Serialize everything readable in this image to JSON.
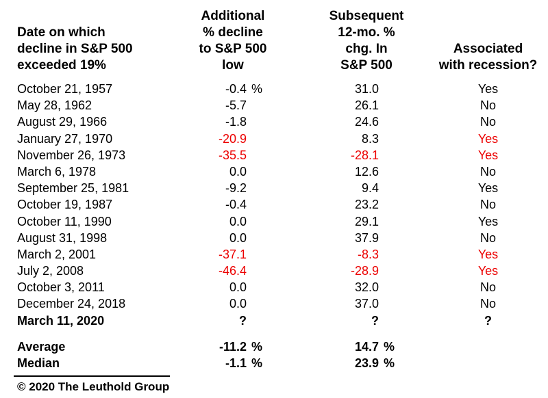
{
  "table": {
    "header": {
      "date_lines": [
        "Date on which",
        "decline in S&P 500",
        "exceeded 19%"
      ],
      "additional_lines": [
        "Additional",
        "% decline",
        "to S&P 500",
        "low"
      ],
      "subsequent_lines": [
        "Subsequent",
        "12-mo. %",
        "chg. In",
        "S&P 500"
      ],
      "recession_lines": [
        "Associated",
        "with recession?"
      ]
    },
    "rows": [
      {
        "date": "October 21, 1957",
        "add": "-0.4",
        "add_pct": "%",
        "chg": "31.0",
        "chg_pct": "",
        "recession": "Yes",
        "add_red": false,
        "chg_red": false,
        "rec_red": false,
        "bold": false
      },
      {
        "date": "May 28, 1962",
        "add": "-5.7",
        "add_pct": "",
        "chg": "26.1",
        "chg_pct": "",
        "recession": "No",
        "add_red": false,
        "chg_red": false,
        "rec_red": false,
        "bold": false
      },
      {
        "date": "August 29, 1966",
        "add": "-1.8",
        "add_pct": "",
        "chg": "24.6",
        "chg_pct": "",
        "recession": "No",
        "add_red": false,
        "chg_red": false,
        "rec_red": false,
        "bold": false
      },
      {
        "date": "January 27, 1970",
        "add": "-20.9",
        "add_pct": "",
        "chg": "8.3",
        "chg_pct": "",
        "recession": "Yes",
        "add_red": true,
        "chg_red": false,
        "rec_red": true,
        "bold": false
      },
      {
        "date": "November 26, 1973",
        "add": "-35.5",
        "add_pct": "",
        "chg": "-28.1",
        "chg_pct": "",
        "recession": "Yes",
        "add_red": true,
        "chg_red": true,
        "rec_red": true,
        "bold": false
      },
      {
        "date": "March 6, 1978",
        "add": "0.0",
        "add_pct": "",
        "chg": "12.6",
        "chg_pct": "",
        "recession": "No",
        "add_red": false,
        "chg_red": false,
        "rec_red": false,
        "bold": false
      },
      {
        "date": "September 25, 1981",
        "add": "-9.2",
        "add_pct": "",
        "chg": "9.4",
        "chg_pct": "",
        "recession": "Yes",
        "add_red": false,
        "chg_red": false,
        "rec_red": false,
        "bold": false
      },
      {
        "date": "October 19, 1987",
        "add": "-0.4",
        "add_pct": "",
        "chg": "23.2",
        "chg_pct": "",
        "recession": "No",
        "add_red": false,
        "chg_red": false,
        "rec_red": false,
        "bold": false
      },
      {
        "date": "October 11, 1990",
        "add": "0.0",
        "add_pct": "",
        "chg": "29.1",
        "chg_pct": "",
        "recession": "Yes",
        "add_red": false,
        "chg_red": false,
        "rec_red": false,
        "bold": false
      },
      {
        "date": "August 31, 1998",
        "add": "0.0",
        "add_pct": "",
        "chg": "37.9",
        "chg_pct": "",
        "recession": "No",
        "add_red": false,
        "chg_red": false,
        "rec_red": false,
        "bold": false
      },
      {
        "date": "March 2, 2001",
        "add": "-37.1",
        "add_pct": "",
        "chg": "-8.3",
        "chg_pct": "",
        "recession": "Yes",
        "add_red": true,
        "chg_red": true,
        "rec_red": true,
        "bold": false
      },
      {
        "date": "July 2, 2008",
        "add": "-46.4",
        "add_pct": "",
        "chg": "-28.9",
        "chg_pct": "",
        "recession": "Yes",
        "add_red": true,
        "chg_red": true,
        "rec_red": true,
        "bold": false
      },
      {
        "date": "October 3, 2011",
        "add": "0.0",
        "add_pct": "",
        "chg": "32.0",
        "chg_pct": "",
        "recession": "No",
        "add_red": false,
        "chg_red": false,
        "rec_red": false,
        "bold": false
      },
      {
        "date": "December 24, 2018",
        "add": "0.0",
        "add_pct": "",
        "chg": "37.0",
        "chg_pct": "",
        "recession": "No",
        "add_red": false,
        "chg_red": false,
        "rec_red": false,
        "bold": false
      },
      {
        "date": "March 11, 2020",
        "add": "?",
        "add_pct": "",
        "chg": "?",
        "chg_pct": "",
        "recession": "?",
        "add_red": false,
        "chg_red": false,
        "rec_red": false,
        "bold": true
      }
    ],
    "summary_rows": [
      {
        "date": "Average",
        "add": "-11.2",
        "add_pct": "%",
        "chg": "14.7",
        "chg_pct": "%",
        "recession": "",
        "add_red": false,
        "chg_red": false,
        "rec_red": false,
        "bold": true
      },
      {
        "date": "Median",
        "add": "-1.1",
        "add_pct": "%",
        "chg": "23.9",
        "chg_pct": "%",
        "recession": "",
        "add_red": false,
        "chg_red": false,
        "rec_red": false,
        "bold": true
      }
    ]
  },
  "footer": {
    "copyright": "© 2020 The Leuthold Group"
  },
  "colors": {
    "background": "#ffffff",
    "text": "#000000",
    "highlight_red": "#ec0000"
  },
  "chart_data": {
    "type": "table",
    "columns": [
      "Date on which decline in S&P 500 exceeded 19%",
      "Additional % decline to S&P 500 low",
      "Subsequent 12-mo. % chg. In S&P 500",
      "Associated with recession?"
    ],
    "rows": [
      [
        "October 21, 1957",
        -0.4,
        31.0,
        "Yes"
      ],
      [
        "May 28, 1962",
        -5.7,
        26.1,
        "No"
      ],
      [
        "August 29, 1966",
        -1.8,
        24.6,
        "No"
      ],
      [
        "January 27, 1970",
        -20.9,
        8.3,
        "Yes"
      ],
      [
        "November 26, 1973",
        -35.5,
        -28.1,
        "Yes"
      ],
      [
        "March 6, 1978",
        0.0,
        12.6,
        "No"
      ],
      [
        "September 25, 1981",
        -9.2,
        9.4,
        "Yes"
      ],
      [
        "October 19, 1987",
        -0.4,
        23.2,
        "No"
      ],
      [
        "October 11, 1990",
        0.0,
        29.1,
        "Yes"
      ],
      [
        "August 31, 1998",
        0.0,
        37.9,
        "No"
      ],
      [
        "March 2, 2001",
        -37.1,
        -8.3,
        "Yes"
      ],
      [
        "July 2, 2008",
        -46.4,
        -28.9,
        "Yes"
      ],
      [
        "October 3, 2011",
        0.0,
        32.0,
        "No"
      ],
      [
        "December 24, 2018",
        0.0,
        37.0,
        "No"
      ],
      [
        "March 11, 2020",
        "?",
        "?",
        "?"
      ]
    ],
    "summary": {
      "average": {
        "additional_decline_pct": -11.2,
        "subsequent_12mo_chg_pct": 14.7
      },
      "median": {
        "additional_decline_pct": -1.1,
        "subsequent_12mo_chg_pct": 23.9
      }
    },
    "red_highlighted_dates": [
      "January 27, 1970",
      "November 26, 1973",
      "March 2, 2001",
      "July 2, 2008"
    ],
    "source": "© 2020 The Leuthold Group"
  }
}
